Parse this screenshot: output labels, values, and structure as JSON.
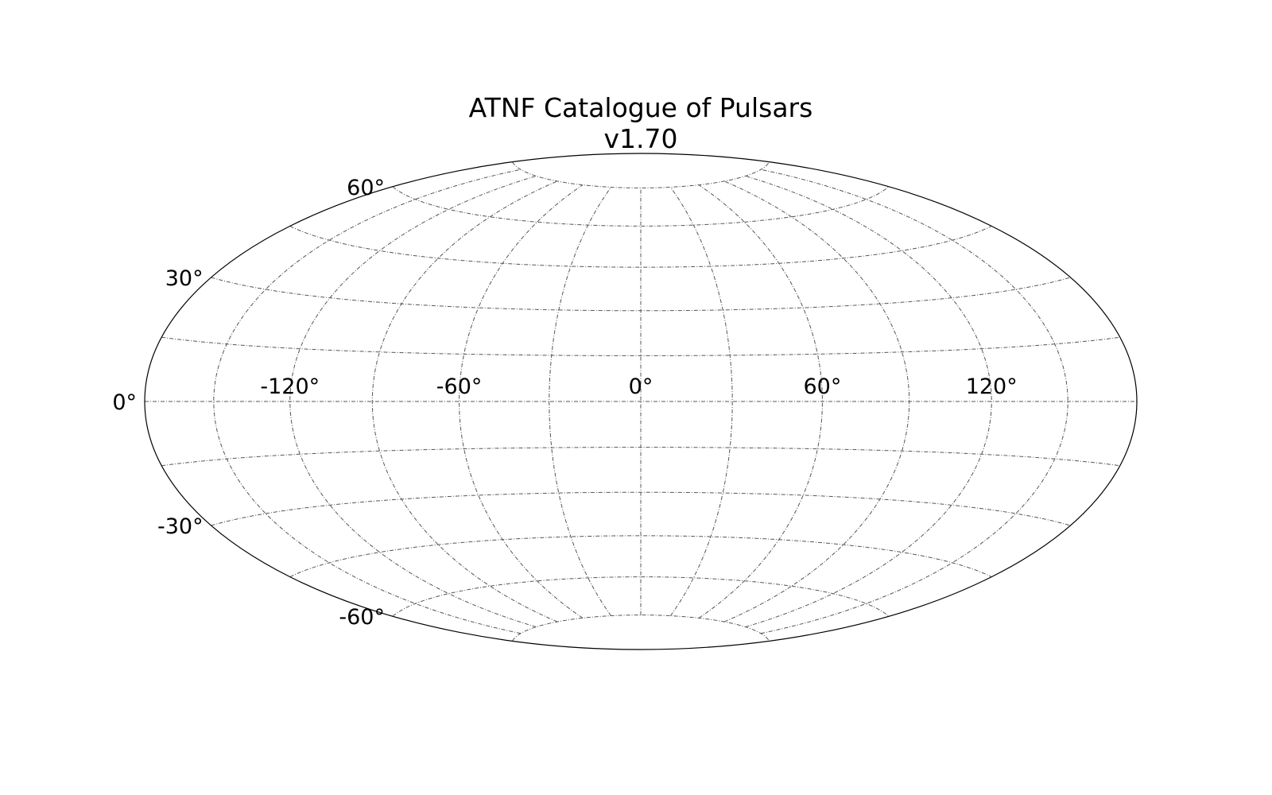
{
  "chart_data": {
    "type": "scatter",
    "projection": "hammer",
    "title": [
      "ATNF Catalogue of Pulsars",
      "v1.70"
    ],
    "series": [],
    "xlim": [
      -180,
      180
    ],
    "ylim": [
      -90,
      90
    ],
    "grid": true,
    "meridians": [
      -150,
      -120,
      -90,
      -60,
      -30,
      0,
      30,
      60,
      90,
      120,
      150
    ],
    "parallels": [
      -75,
      -60,
      -45,
      -30,
      -15,
      0,
      15,
      30,
      45,
      60,
      75
    ],
    "x_ticks": [
      {
        "value": -120,
        "label": "-120°"
      },
      {
        "value": -60,
        "label": "-60°"
      },
      {
        "value": 0,
        "label": "0°"
      },
      {
        "value": 60,
        "label": "60°"
      },
      {
        "value": 120,
        "label": "120°"
      }
    ],
    "y_ticks": [
      {
        "value": 60,
        "label": "60°"
      },
      {
        "value": 30,
        "label": "30°"
      },
      {
        "value": 0,
        "label": "0°"
      },
      {
        "value": -30,
        "label": "-30°"
      },
      {
        "value": -60,
        "label": "-60°"
      }
    ],
    "colors": {
      "frame": "#000000",
      "grid": "#555555",
      "text": "#000000"
    }
  }
}
